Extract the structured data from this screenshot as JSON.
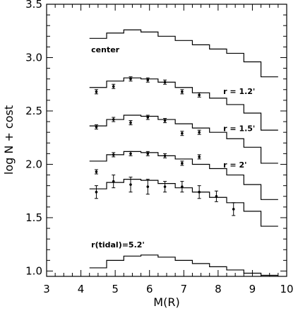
{
  "chart_data": {
    "type": "line",
    "xlabel": "M(R)",
    "ylabel": "log N + cost",
    "xlim": [
      3,
      10
    ],
    "ylim": [
      0.95,
      3.5
    ],
    "x_ticks": [
      "3",
      "4",
      "5",
      "6",
      "7",
      "8",
      "9",
      "10"
    ],
    "y_ticks": [
      "1.0",
      "1.5",
      "2.0",
      "2.5",
      "3.0",
      "3.5"
    ],
    "x_tick_values": [
      3,
      4,
      5,
      6,
      7,
      8,
      9,
      10
    ],
    "y_tick_values": [
      1.0,
      1.5,
      2.0,
      2.5,
      3.0,
      3.5
    ],
    "bin_edges": [
      4.25,
      4.75,
      5.25,
      5.75,
      6.25,
      6.75,
      7.25,
      7.75,
      8.25,
      8.75,
      9.25,
      9.75
    ],
    "histograms": [
      {
        "name": "center",
        "label_x": 4.3,
        "label_y": 3.05,
        "values": [
          3.18,
          3.23,
          3.26,
          3.24,
          3.2,
          3.16,
          3.12,
          3.08,
          3.04,
          2.96,
          2.82
        ]
      },
      {
        "name": "r = 1.2'",
        "label_x": 8.15,
        "label_y": 2.66,
        "values": [
          2.72,
          2.78,
          2.81,
          2.8,
          2.77,
          2.72,
          2.67,
          2.62,
          2.56,
          2.48,
          2.32
        ]
      },
      {
        "name": "r = 1.5'",
        "label_x": 8.15,
        "label_y": 2.31,
        "values": [
          2.36,
          2.42,
          2.46,
          2.45,
          2.42,
          2.38,
          2.34,
          2.3,
          2.24,
          2.16,
          2.01
        ]
      },
      {
        "name": "r = 2'",
        "label_x": 8.15,
        "label_y": 1.97,
        "values": [
          2.03,
          2.09,
          2.12,
          2.11,
          2.08,
          2.05,
          2.0,
          1.96,
          1.9,
          1.81,
          1.67
        ]
      },
      {
        "name": "",
        "label_x": null,
        "label_y": null,
        "values": [
          1.77,
          1.83,
          1.86,
          1.85,
          1.82,
          1.78,
          1.74,
          1.69,
          1.64,
          1.56,
          1.42
        ]
      },
      {
        "name": "r(tidal)=5.2'",
        "label_x": 4.3,
        "label_y": 1.22,
        "values": [
          1.03,
          1.1,
          1.14,
          1.15,
          1.13,
          1.1,
          1.07,
          1.04,
          1.01,
          0.98,
          0.96
        ]
      }
    ],
    "points": [
      {
        "series": "r = 1.2'",
        "x": [
          4.45,
          4.95,
          5.45,
          5.95,
          6.45,
          6.95,
          7.45
        ],
        "y": [
          2.68,
          2.73,
          2.8,
          2.79,
          2.77,
          2.68,
          2.65
        ],
        "err": [
          0.02,
          0.02,
          0.02,
          0.02,
          0.02,
          0.02,
          0.02
        ]
      },
      {
        "series": "r = 1.5'",
        "x": [
          4.45,
          4.95,
          5.45,
          5.95,
          6.45,
          6.95,
          7.45
        ],
        "y": [
          2.35,
          2.42,
          2.39,
          2.44,
          2.41,
          2.29,
          2.3
        ],
        "err": [
          0.02,
          0.02,
          0.02,
          0.02,
          0.02,
          0.02,
          0.02
        ]
      },
      {
        "series": "r = 2'",
        "x": [
          4.45,
          4.95,
          5.45,
          5.95,
          6.45,
          6.95,
          7.45
        ],
        "y": [
          1.93,
          2.09,
          2.1,
          2.1,
          2.08,
          2.01,
          2.07
        ],
        "err": [
          0.02,
          0.02,
          0.02,
          0.02,
          0.02,
          0.02,
          0.02
        ]
      },
      {
        "series": "",
        "x": [
          4.45,
          4.95,
          5.45,
          5.95,
          6.45,
          6.95,
          7.45,
          7.95,
          8.45
        ],
        "y": [
          1.74,
          1.84,
          1.81,
          1.79,
          1.79,
          1.79,
          1.74,
          1.7,
          1.58
        ],
        "err": [
          0.06,
          0.06,
          0.07,
          0.07,
          0.05,
          0.05,
          0.06,
          0.05,
          0.06
        ]
      }
    ]
  }
}
